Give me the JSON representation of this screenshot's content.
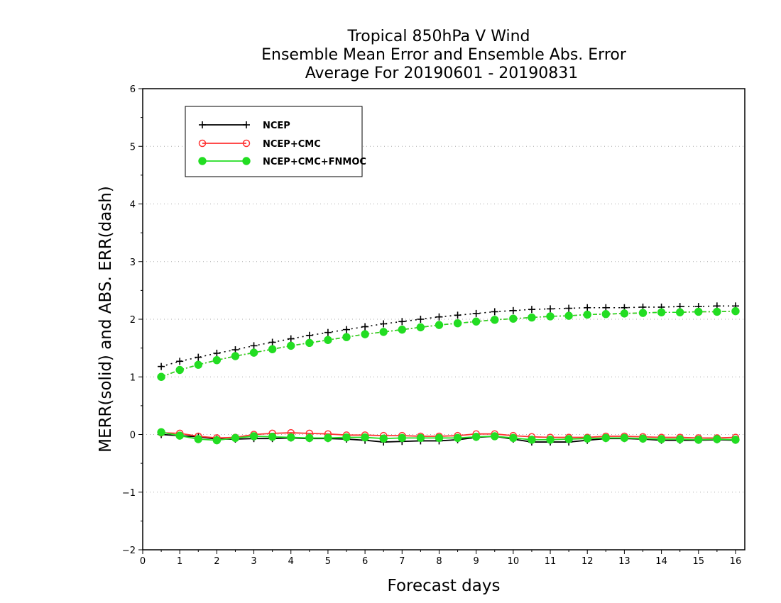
{
  "chart_data": {
    "type": "line",
    "title_lines": [
      "Tropical 850hPa V Wind",
      "Ensemble Mean Error and Ensemble Abs. Error",
      "Average For 20190601 - 20190831"
    ],
    "xlabel": "Forecast days",
    "ylabel": "MERR(solid) and ABS. ERR(dash)",
    "xlim": [
      0,
      16.25
    ],
    "ylim": [
      -2,
      6
    ],
    "x_ticks": [
      0,
      1,
      2,
      3,
      4,
      5,
      6,
      7,
      8,
      9,
      10,
      11,
      12,
      13,
      14,
      15,
      16
    ],
    "y_ticks": [
      -2,
      -1,
      0,
      1,
      2,
      3,
      4,
      5,
      6
    ],
    "y_tick_labels": [
      "−2",
      "−1",
      "0",
      "1",
      "2",
      "3",
      "4",
      "5",
      "6"
    ],
    "grid": "horizontal dotted",
    "legend_position": "top-left",
    "x": [
      0.5,
      1,
      1.5,
      2,
      2.5,
      3,
      3.5,
      4,
      4.5,
      5,
      5.5,
      6,
      6.5,
      7,
      7.5,
      8,
      8.5,
      9,
      9.5,
      10,
      10.5,
      11,
      11.5,
      12,
      12.5,
      13,
      13.5,
      14,
      14.5,
      15,
      15.5,
      16
    ],
    "series": [
      {
        "name": "NCEP",
        "color": "#000000",
        "marker": "plus",
        "merr": [
          0.0,
          -0.02,
          -0.04,
          -0.08,
          -0.08,
          -0.07,
          -0.07,
          -0.06,
          -0.07,
          -0.07,
          -0.08,
          -0.1,
          -0.13,
          -0.12,
          -0.11,
          -0.11,
          -0.09,
          -0.05,
          -0.03,
          -0.08,
          -0.13,
          -0.13,
          -0.13,
          -0.1,
          -0.07,
          -0.07,
          -0.08,
          -0.1,
          -0.1,
          -0.1,
          -0.09,
          -0.1
        ],
        "abs_err": [
          1.18,
          1.27,
          1.34,
          1.41,
          1.47,
          1.54,
          1.6,
          1.66,
          1.72,
          1.77,
          1.82,
          1.87,
          1.92,
          1.96,
          2.0,
          2.04,
          2.07,
          2.1,
          2.13,
          2.15,
          2.17,
          2.18,
          2.19,
          2.2,
          2.2,
          2.2,
          2.21,
          2.21,
          2.22,
          2.22,
          2.23,
          2.23
        ]
      },
      {
        "name": "NCEP+CMC",
        "color": "#ff3333",
        "marker": "open-circle",
        "merr": [
          0.03,
          0.02,
          -0.03,
          -0.06,
          -0.05,
          0.0,
          0.02,
          0.03,
          0.02,
          0.01,
          -0.01,
          -0.01,
          -0.02,
          -0.02,
          -0.03,
          -0.03,
          -0.02,
          0.01,
          0.01,
          -0.02,
          -0.04,
          -0.05,
          -0.05,
          -0.05,
          -0.03,
          -0.03,
          -0.04,
          -0.05,
          -0.05,
          -0.06,
          -0.06,
          -0.05
        ],
        "abs_err": [
          1.0,
          1.12,
          1.21,
          1.29,
          1.36,
          1.42,
          1.48,
          1.54,
          1.59,
          1.64,
          1.69,
          1.74,
          1.78,
          1.82,
          1.86,
          1.9,
          1.93,
          1.96,
          1.99,
          2.01,
          2.03,
          2.05,
          2.06,
          2.08,
          2.09,
          2.1,
          2.11,
          2.12,
          2.12,
          2.13,
          2.13,
          2.14
        ]
      },
      {
        "name": "NCEP+CMC+FNMOC",
        "color": "#22dd22",
        "marker": "filled-circle",
        "merr": [
          0.04,
          -0.02,
          -0.08,
          -0.1,
          -0.06,
          -0.03,
          -0.04,
          -0.05,
          -0.06,
          -0.06,
          -0.05,
          -0.05,
          -0.07,
          -0.06,
          -0.06,
          -0.06,
          -0.06,
          -0.04,
          -0.03,
          -0.06,
          -0.09,
          -0.09,
          -0.08,
          -0.07,
          -0.06,
          -0.06,
          -0.07,
          -0.08,
          -0.08,
          -0.09,
          -0.08,
          -0.09
        ],
        "abs_err": [
          1.0,
          1.12,
          1.21,
          1.29,
          1.36,
          1.42,
          1.48,
          1.54,
          1.59,
          1.64,
          1.69,
          1.74,
          1.78,
          1.82,
          1.86,
          1.9,
          1.93,
          1.96,
          1.99,
          2.01,
          2.03,
          2.05,
          2.06,
          2.08,
          2.09,
          2.1,
          2.11,
          2.12,
          2.12,
          2.13,
          2.13,
          2.14
        ]
      }
    ]
  }
}
